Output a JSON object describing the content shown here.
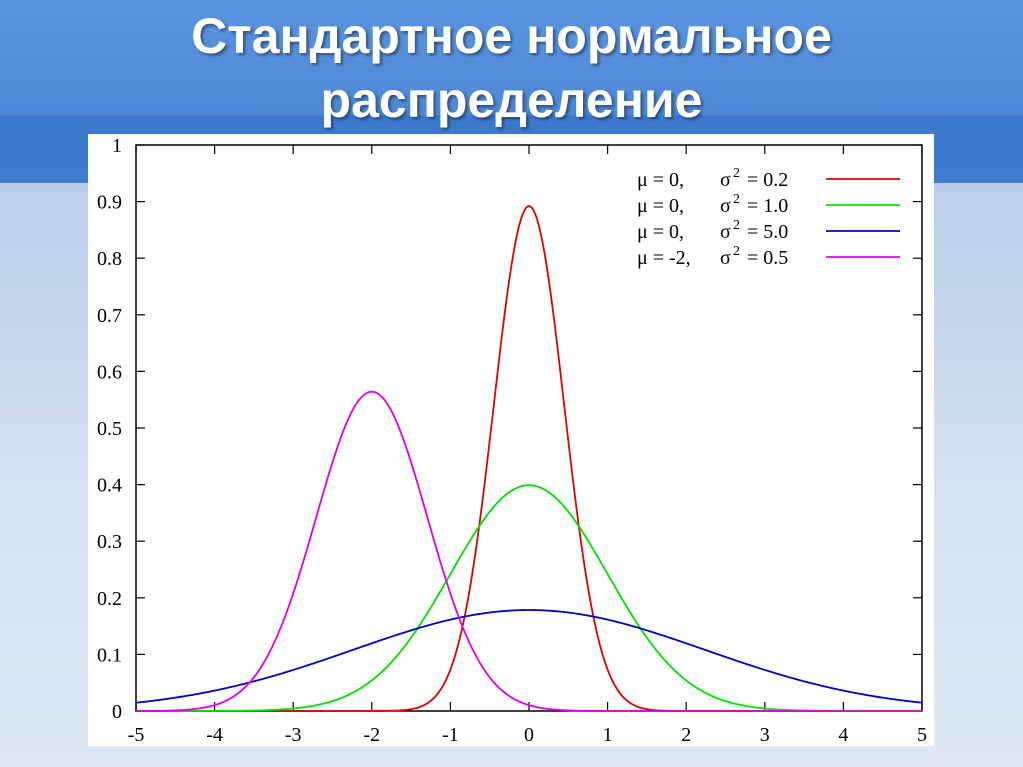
{
  "slide": {
    "title_line1": "Стандартное нормальное",
    "title_line2": "распределение"
  },
  "chart_data": {
    "type": "line",
    "title": "",
    "xlabel": "",
    "ylabel": "",
    "xlim": [
      -5,
      5
    ],
    "ylim": [
      0,
      1
    ],
    "xticks": [
      "-5",
      "-4",
      "-3",
      "-2",
      "-1",
      "0",
      "1",
      "2",
      "3",
      "4",
      "5"
    ],
    "yticks": [
      "0",
      "0.1",
      "0.2",
      "0.3",
      "0.4",
      "0.5",
      "0.6",
      "0.7",
      "0.8",
      "0.9",
      "1"
    ],
    "grid": false,
    "legend_position": "top-right",
    "series": [
      {
        "name": "μ = 0, σ2 = 0.2",
        "mu": 0,
        "variance": 0.2,
        "color": "#e00000",
        "legend": {
          "mu": "μ =  0,",
          "var": "= 0.2"
        }
      },
      {
        "name": "μ = 0, σ2 = 1.0",
        "mu": 0,
        "variance": 1.0,
        "color": "#00e000",
        "legend": {
          "mu": "μ =  0,",
          "var": "= 1.0"
        }
      },
      {
        "name": "μ = 0, σ2 = 5.0",
        "mu": 0,
        "variance": 5.0,
        "color": "#0000c8",
        "legend": {
          "mu": "μ =  0,",
          "var": "= 5.0"
        }
      },
      {
        "name": "μ = -2, σ2 = 0.5",
        "mu": -2,
        "variance": 0.5,
        "color": "#e000e0",
        "legend": {
          "mu": "μ = -2,",
          "var": "= 0.5"
        }
      }
    ]
  }
}
